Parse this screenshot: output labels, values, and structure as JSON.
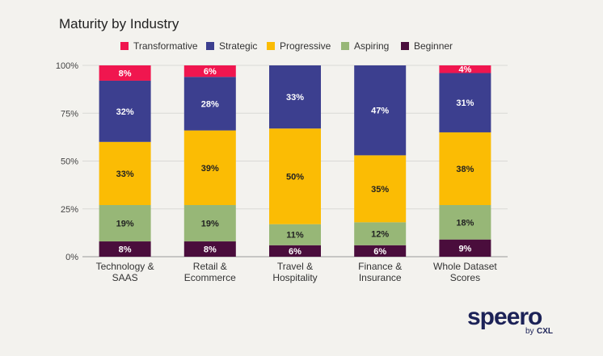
{
  "chart_data": {
    "type": "bar",
    "stacked": true,
    "title": "Maturity by Industry",
    "categories": [
      [
        "Technology &",
        "SAAS"
      ],
      [
        "Retail &",
        "Ecommerce"
      ],
      [
        "Travel &",
        "Hospitality"
      ],
      [
        "Finance &",
        "Insurance"
      ],
      [
        "Whole Dataset",
        "Scores"
      ]
    ],
    "y_ticks": [
      "0%",
      "25%",
      "50%",
      "75%",
      "100%"
    ],
    "ylim": [
      0,
      100
    ],
    "grid": true,
    "legend_position": "top",
    "series": [
      {
        "name": "Beginner",
        "color": "#4a0d3c",
        "label_color": "#ffffff",
        "values": [
          8,
          8,
          6,
          6,
          9
        ]
      },
      {
        "name": "Aspiring",
        "color": "#97b777",
        "label_color": "#222222",
        "values": [
          19,
          19,
          11,
          12,
          18
        ]
      },
      {
        "name": "Progressive",
        "color": "#fbbc04",
        "label_color": "#222222",
        "values": [
          33,
          39,
          50,
          35,
          38
        ]
      },
      {
        "name": "Strategic",
        "color": "#3c3f8f",
        "label_color": "#ffffff",
        "values": [
          32,
          28,
          33,
          47,
          31
        ]
      },
      {
        "name": "Transformative",
        "color": "#f0164f",
        "label_color": "#ffffff",
        "values": [
          8,
          6,
          0,
          0,
          4
        ]
      }
    ],
    "legend_order": [
      "Transformative",
      "Strategic",
      "Progressive",
      "Aspiring",
      "Beginner"
    ]
  },
  "logo": {
    "word": "speero",
    "by": "by",
    "brand": "CXL"
  }
}
